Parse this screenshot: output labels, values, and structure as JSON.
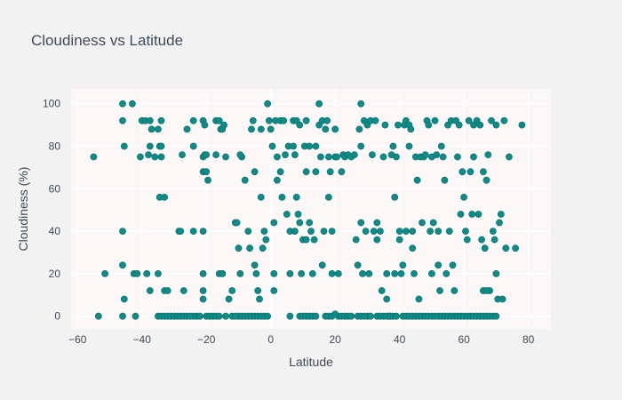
{
  "chart_data": {
    "type": "scatter",
    "title": "Cloudiness vs Latitude",
    "xlabel": "Latitude",
    "ylabel": "Cloudiness (%)",
    "xlim": [
      -62,
      87
    ],
    "ylim": [
      -6,
      107
    ],
    "xticks": [
      -60,
      -40,
      -20,
      0,
      20,
      40,
      60,
      80
    ],
    "yticks": [
      0,
      20,
      40,
      60,
      80,
      100
    ],
    "grid": true,
    "legend": "none",
    "colors": {
      "marker": "#0f8a87",
      "marker_edge": "#066e6b",
      "plot_background": "#fcf7f7",
      "paper_background": "#f2f2f2",
      "grid": "#ffffff",
      "text": "#3f4a5a"
    },
    "points": [
      [
        -55,
        75
      ],
      [
        -53.5,
        0
      ],
      [
        -51.5,
        20
      ],
      [
        -46,
        100
      ],
      [
        -46,
        92
      ],
      [
        -45.5,
        80
      ],
      [
        -46,
        40
      ],
      [
        -46,
        24
      ],
      [
        -46,
        0
      ],
      [
        -45.5,
        8
      ],
      [
        -43,
        100
      ],
      [
        -42.5,
        20
      ],
      [
        -41.5,
        20
      ],
      [
        -42,
        0
      ],
      [
        -40,
        92
      ],
      [
        -39,
        92
      ],
      [
        -40.5,
        75
      ],
      [
        -38.5,
        20
      ],
      [
        -37.5,
        92
      ],
      [
        -37,
        88
      ],
      [
        -36,
        75
      ],
      [
        -35,
        88
      ],
      [
        -34.5,
        80
      ],
      [
        -34,
        80
      ],
      [
        -34,
        75
      ],
      [
        -34,
        92
      ],
      [
        -34.5,
        56
      ],
      [
        -35,
        20
      ],
      [
        -33,
        56
      ],
      [
        -37.5,
        80
      ],
      [
        -37.5,
        12
      ],
      [
        -38,
        76
      ],
      [
        -33,
        12
      ],
      [
        -32,
        12
      ],
      [
        -35,
        0
      ],
      [
        -34,
        0
      ],
      [
        -33,
        0
      ],
      [
        -32,
        0
      ],
      [
        -31,
        0
      ],
      [
        -30,
        0
      ],
      [
        -29,
        0
      ],
      [
        -28,
        0
      ],
      [
        -27,
        0
      ],
      [
        -26,
        0
      ],
      [
        -28.5,
        40
      ],
      [
        -28,
        40
      ],
      [
        -27.5,
        76
      ],
      [
        -27,
        12
      ],
      [
        -26,
        88
      ],
      [
        -24,
        92
      ],
      [
        -24,
        80
      ],
      [
        -24,
        40
      ],
      [
        -23,
        0
      ],
      [
        -22,
        0
      ],
      [
        -21,
        92
      ],
      [
        -20.5,
        90
      ],
      [
        -21,
        75
      ],
      [
        -20.5,
        76
      ],
      [
        -20,
        76
      ],
      [
        -21,
        68
      ],
      [
        -20,
        68
      ],
      [
        -19.5,
        64
      ],
      [
        -21,
        40
      ],
      [
        -21,
        20
      ],
      [
        -21,
        12
      ],
      [
        -21,
        8
      ],
      [
        -20,
        0
      ],
      [
        -19,
        0
      ],
      [
        -18,
        0
      ],
      [
        -17,
        92
      ],
      [
        -16,
        92
      ],
      [
        -15.5,
        88
      ],
      [
        -15,
        88
      ],
      [
        -14.5,
        90
      ],
      [
        -14,
        75
      ],
      [
        -17,
        76
      ],
      [
        -15,
        20
      ],
      [
        -16,
        20
      ],
      [
        -13,
        8
      ],
      [
        -12,
        12
      ],
      [
        -11,
        44
      ],
      [
        -10.5,
        44
      ],
      [
        -10,
        32
      ],
      [
        -9.5,
        20
      ],
      [
        -9,
        75
      ],
      [
        -9.5,
        76
      ],
      [
        -8,
        64
      ],
      [
        -7,
        40
      ],
      [
        -6.5,
        32
      ],
      [
        -6,
        88
      ],
      [
        -5.5,
        92
      ],
      [
        -5,
        68
      ],
      [
        -5,
        24
      ],
      [
        -4.5,
        20
      ],
      [
        -4,
        12
      ],
      [
        -3.5,
        8
      ],
      [
        -3,
        88
      ],
      [
        -3,
        56
      ],
      [
        -2.5,
        32
      ],
      [
        -2,
        40
      ],
      [
        -1.5,
        36
      ],
      [
        -1,
        100
      ],
      [
        -0.5,
        92
      ],
      [
        0,
        88
      ],
      [
        0.5,
        80
      ],
      [
        1,
        44
      ],
      [
        1,
        20
      ],
      [
        1,
        12
      ],
      [
        1.5,
        92
      ],
      [
        2,
        75
      ],
      [
        2,
        64
      ],
      [
        3,
        92
      ],
      [
        3,
        68
      ],
      [
        3.5,
        56
      ],
      [
        4,
        92
      ],
      [
        4.5,
        76
      ],
      [
        5,
        48
      ],
      [
        5.5,
        80
      ],
      [
        6,
        40
      ],
      [
        6,
        20
      ],
      [
        6,
        0
      ],
      [
        7,
        92
      ],
      [
        7,
        80
      ],
      [
        7.5,
        76
      ],
      [
        7.5,
        40
      ],
      [
        8,
        92
      ],
      [
        8,
        56
      ],
      [
        8.5,
        48
      ],
      [
        9,
        90
      ],
      [
        9,
        44
      ],
      [
        9.5,
        20
      ],
      [
        10,
        36
      ],
      [
        10.5,
        80
      ],
      [
        11,
        92
      ],
      [
        11,
        68
      ],
      [
        11,
        36
      ],
      [
        12,
        80
      ],
      [
        12,
        44
      ],
      [
        12.5,
        40
      ],
      [
        13,
        20
      ],
      [
        13.5,
        36
      ],
      [
        14,
        80
      ],
      [
        14,
        68
      ],
      [
        15,
        100
      ],
      [
        15,
        90
      ],
      [
        15.5,
        75
      ],
      [
        16,
        92
      ],
      [
        16,
        24
      ],
      [
        16.5,
        40
      ],
      [
        17,
        88
      ],
      [
        17.5,
        92
      ],
      [
        18,
        56
      ],
      [
        18,
        75
      ],
      [
        18.5,
        68
      ],
      [
        19,
        40
      ],
      [
        19,
        20
      ],
      [
        20,
        88
      ],
      [
        20,
        75
      ],
      [
        20.5,
        75
      ],
      [
        21,
        0
      ],
      [
        21,
        20
      ],
      [
        22,
        68
      ],
      [
        22.5,
        76
      ],
      [
        23,
        75
      ],
      [
        24,
        76
      ],
      [
        25,
        75
      ],
      [
        26,
        76
      ],
      [
        26.5,
        36
      ],
      [
        27,
        24
      ],
      [
        27.5,
        88
      ],
      [
        28,
        80
      ],
      [
        28,
        100
      ],
      [
        28,
        44
      ],
      [
        28.5,
        20
      ],
      [
        29,
        92
      ],
      [
        29.5,
        40
      ],
      [
        30,
        90
      ],
      [
        30.5,
        20
      ],
      [
        31,
        92
      ],
      [
        31.5,
        76
      ],
      [
        32,
        40
      ],
      [
        32.5,
        92
      ],
      [
        33,
        44
      ],
      [
        33,
        36
      ],
      [
        34,
        40
      ],
      [
        34.5,
        12
      ],
      [
        35,
        75
      ],
      [
        35.5,
        90
      ],
      [
        36,
        20
      ],
      [
        36,
        8
      ],
      [
        36.5,
        0
      ],
      [
        37,
        0
      ],
      [
        37.5,
        76
      ],
      [
        38,
        80
      ],
      [
        38.5,
        56
      ],
      [
        38.5,
        20
      ],
      [
        39,
        75
      ],
      [
        39.5,
        90
      ],
      [
        40,
        40
      ],
      [
        40,
        36
      ],
      [
        40.5,
        20
      ],
      [
        41,
        24
      ],
      [
        41.5,
        90
      ],
      [
        42,
        40
      ],
      [
        42,
        92
      ],
      [
        43,
        90
      ],
      [
        43,
        80
      ],
      [
        43.5,
        88
      ],
      [
        44,
        40
      ],
      [
        44,
        32
      ],
      [
        44.5,
        20
      ],
      [
        45,
        75
      ],
      [
        45.5,
        64
      ],
      [
        46,
        8
      ],
      [
        46.5,
        75
      ],
      [
        47,
        44
      ],
      [
        47.5,
        75
      ],
      [
        48,
        76
      ],
      [
        48.5,
        92
      ],
      [
        49,
        90
      ],
      [
        49.5,
        40
      ],
      [
        50,
        75
      ],
      [
        50,
        20
      ],
      [
        50.5,
        44
      ],
      [
        51,
        92
      ],
      [
        51.5,
        76
      ],
      [
        52,
        40
      ],
      [
        52,
        24
      ],
      [
        52.5,
        12
      ],
      [
        53,
        80
      ],
      [
        53.5,
        75
      ],
      [
        54,
        64
      ],
      [
        54.5,
        20
      ],
      [
        55,
        90
      ],
      [
        55.5,
        40
      ],
      [
        56,
        92
      ],
      [
        56.5,
        24
      ],
      [
        57,
        12
      ],
      [
        57.5,
        92
      ],
      [
        58,
        75
      ],
      [
        58.5,
        90
      ],
      [
        59,
        48
      ],
      [
        59.5,
        68
      ],
      [
        60,
        56
      ],
      [
        60.5,
        40
      ],
      [
        61,
        36
      ],
      [
        61.5,
        92
      ],
      [
        62,
        68
      ],
      [
        62.5,
        48
      ],
      [
        63,
        90
      ],
      [
        63,
        75
      ],
      [
        64,
        92
      ],
      [
        64.5,
        48
      ],
      [
        65,
        90
      ],
      [
        65.5,
        36
      ],
      [
        66,
        68
      ],
      [
        66.5,
        32
      ],
      [
        67,
        64
      ],
      [
        67.5,
        76
      ],
      [
        68,
        12
      ],
      [
        68.5,
        92
      ],
      [
        69,
        40
      ],
      [
        69.5,
        36
      ],
      [
        70,
        90
      ],
      [
        70,
        20
      ],
      [
        70.5,
        8
      ],
      [
        71,
        44
      ],
      [
        71.5,
        48
      ],
      [
        72,
        8
      ],
      [
        72.5,
        92
      ],
      [
        73,
        32
      ],
      [
        74,
        75
      ],
      [
        76,
        32
      ],
      [
        78,
        90
      ],
      [
        30,
        0
      ],
      [
        31,
        0
      ],
      [
        33,
        0
      ],
      [
        34,
        0
      ],
      [
        35,
        0
      ],
      [
        36,
        0
      ],
      [
        37,
        0
      ],
      [
        38,
        0
      ],
      [
        39,
        0
      ],
      [
        41,
        0
      ],
      [
        42,
        0
      ],
      [
        43,
        0
      ],
      [
        44,
        0
      ],
      [
        45,
        0
      ],
      [
        46,
        0
      ],
      [
        47,
        0
      ],
      [
        48,
        0
      ],
      [
        49,
        0
      ],
      [
        50,
        0
      ],
      [
        51,
        0
      ],
      [
        52,
        0
      ],
      [
        53,
        0
      ],
      [
        54,
        0
      ],
      [
        55,
        0
      ],
      [
        56,
        0
      ],
      [
        57,
        0
      ],
      [
        58,
        0
      ],
      [
        59,
        0
      ],
      [
        60,
        0
      ],
      [
        61,
        0
      ],
      [
        62,
        0
      ],
      [
        63,
        0
      ],
      [
        64,
        0
      ],
      [
        65,
        0
      ],
      [
        66,
        0
      ],
      [
        67,
        0
      ],
      [
        68,
        0
      ],
      [
        69,
        0
      ],
      [
        70,
        0
      ],
      [
        -10,
        0
      ],
      [
        -9,
        0
      ],
      [
        -8,
        0
      ],
      [
        -7,
        0
      ],
      [
        -6,
        0
      ],
      [
        -5,
        0
      ],
      [
        -4,
        0
      ],
      [
        -3,
        0
      ],
      [
        -2,
        0
      ],
      [
        -1,
        0
      ],
      [
        9,
        0
      ],
      [
        10,
        0
      ],
      [
        11,
        0
      ],
      [
        12,
        0
      ],
      [
        13,
        0
      ],
      [
        14,
        0
      ],
      [
        17,
        0
      ],
      [
        18,
        0
      ],
      [
        19,
        0
      ],
      [
        20,
        1
      ],
      [
        22,
        0
      ],
      [
        23,
        0
      ],
      [
        24,
        0
      ],
      [
        25,
        0
      ],
      [
        27,
        0
      ],
      [
        28,
        0
      ],
      [
        29,
        0
      ],
      [
        -14,
        0
      ],
      [
        -12,
        0
      ],
      [
        -11,
        0
      ],
      [
        -17,
        0
      ],
      [
        -16,
        0
      ],
      [
        -15,
        20
      ],
      [
        -24,
        0
      ],
      [
        -25,
        0
      ],
      [
        66,
        12
      ],
      [
        67,
        12
      ]
    ]
  }
}
